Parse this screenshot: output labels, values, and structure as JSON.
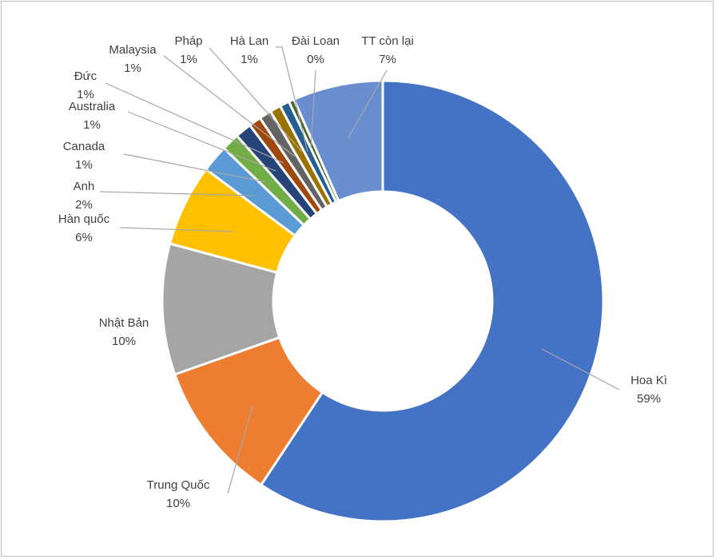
{
  "chart_data": {
    "type": "pie",
    "variant": "donut",
    "title": "",
    "legend": "none",
    "slices": [
      {
        "label": "Hoa Kì",
        "pct_label": "59%",
        "value": 59.3,
        "color": "#4472C4"
      },
      {
        "label": "Trung Quốc",
        "pct_label": "10%",
        "value": 10.3,
        "color": "#ED7D31"
      },
      {
        "label": "Nhật Bản",
        "pct_label": "10%",
        "value": 9.6,
        "color": "#A5A5A5"
      },
      {
        "label": "Hàn quốc",
        "pct_label": "6%",
        "value": 6.0,
        "color": "#FFC000"
      },
      {
        "label": "Anh",
        "pct_label": "2%",
        "value": 2.0,
        "color": "#5B9BD5"
      },
      {
        "label": "Canada",
        "pct_label": "1%",
        "value": 1.3,
        "color": "#70AD47"
      },
      {
        "label": "Australia",
        "pct_label": "1%",
        "value": 1.2,
        "color": "#264478"
      },
      {
        "label": "Đức",
        "pct_label": "1%",
        "value": 0.9,
        "color": "#9E480E"
      },
      {
        "label": "Malaysia",
        "pct_label": "1%",
        "value": 0.9,
        "color": "#636363"
      },
      {
        "label": "Pháp",
        "pct_label": "1%",
        "value": 0.8,
        "color": "#997300"
      },
      {
        "label": "Hà Lan",
        "pct_label": "1%",
        "value": 0.7,
        "color": "#255E91"
      },
      {
        "label": "Đài Loan",
        "pct_label": "0%",
        "value": 0.4,
        "color": "#43682B"
      },
      {
        "label": "TT còn lại",
        "pct_label": "7%",
        "value": 6.6,
        "color": "#698ED0"
      }
    ]
  }
}
